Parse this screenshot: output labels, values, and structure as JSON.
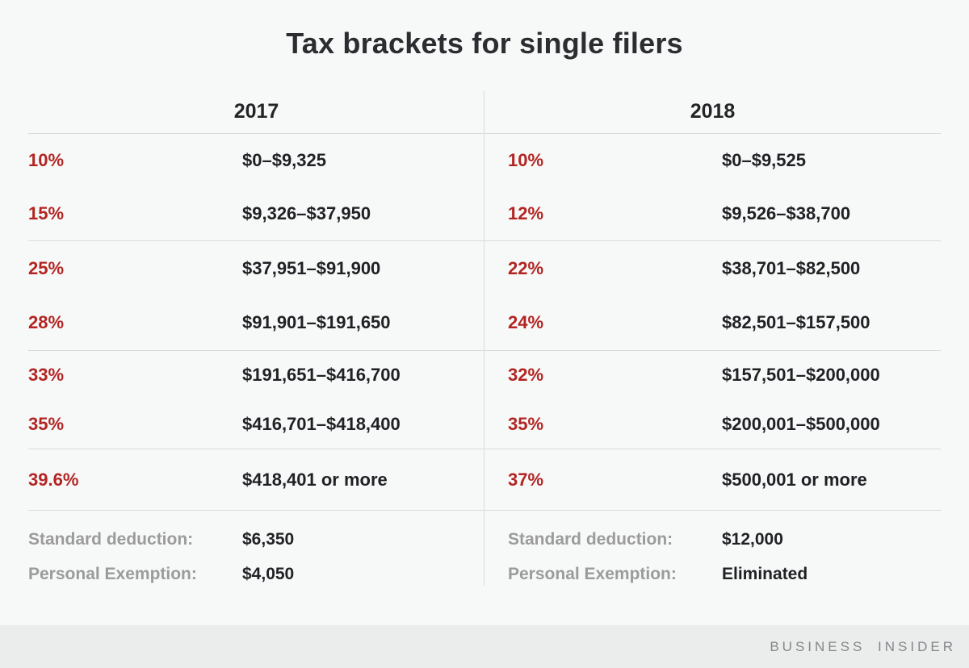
{
  "title": "Tax brackets for single filers",
  "years": [
    {
      "year": "2017",
      "brackets": [
        {
          "rate": "10%",
          "range": "$0–$9,325"
        },
        {
          "rate": "15%",
          "range": "$9,326–$37,950"
        },
        {
          "rate": "25%",
          "range": "$37,951–$91,900"
        },
        {
          "rate": "28%",
          "range": "$91,901–$191,650"
        },
        {
          "rate": "33%",
          "range": "$191,651–$416,700"
        },
        {
          "rate": "35%",
          "range": "$416,701–$418,400"
        },
        {
          "rate": "39.6%",
          "range": "$418,401 or more"
        }
      ],
      "standard_deduction_label": "Standard deduction:",
      "standard_deduction": "$6,350",
      "personal_exemption_label": "Personal Exemption:",
      "personal_exemption": "$4,050"
    },
    {
      "year": "2018",
      "brackets": [
        {
          "rate": "10%",
          "range": "$0–$9,525"
        },
        {
          "rate": "12%",
          "range": "$9,526–$38,700"
        },
        {
          "rate": "22%",
          "range": "$38,701–$82,500"
        },
        {
          "rate": "24%",
          "range": "$82,501–$157,500"
        },
        {
          "rate": "32%",
          "range": "$157,501–$200,000"
        },
        {
          "rate": "35%",
          "range": "$200,001–$500,000"
        },
        {
          "rate": "37%",
          "range": "$500,001 or more"
        }
      ],
      "standard_deduction_label": "Standard deduction:",
      "standard_deduction": "$12,000",
      "personal_exemption_label": "Personal Exemption:",
      "personal_exemption": "Eliminated"
    }
  ],
  "footer": {
    "brand": "BUSINESS INSIDER"
  },
  "colors": {
    "accent_red": "#b22522",
    "background": "#f7f8f8",
    "rule_gray": "#d9dadb",
    "label_gray": "#9b9b9b",
    "text_dark": "#1f2124",
    "footer_bg": "#ebecec",
    "footer_text": "#85888b"
  },
  "chart_data": {
    "type": "table",
    "title": "Tax brackets for single filers",
    "columns": [
      "2017 rate",
      "2017 income range",
      "2018 rate",
      "2018 income range"
    ],
    "rows": [
      [
        "10%",
        "$0–$9,325",
        "10%",
        "$0–$9,525"
      ],
      [
        "15%",
        "$9,326–$37,950",
        "12%",
        "$9,526–$38,700"
      ],
      [
        "25%",
        "$37,951–$91,900",
        "22%",
        "$38,701–$82,500"
      ],
      [
        "28%",
        "$91,901–$191,650",
        "24%",
        "$82,501–$157,500"
      ],
      [
        "33%",
        "$191,651–$416,700",
        "32%",
        "$157,501–$200,000"
      ],
      [
        "35%",
        "$416,701–$418,400",
        "35%",
        "$200,001–$500,000"
      ],
      [
        "39.6%",
        "$418,401 or more",
        "37%",
        "$500,001 or more"
      ]
    ],
    "notes": {
      "2017": {
        "standard_deduction": "$6,350",
        "personal_exemption": "$4,050"
      },
      "2018": {
        "standard_deduction": "$12,000",
        "personal_exemption": "Eliminated"
      }
    }
  }
}
